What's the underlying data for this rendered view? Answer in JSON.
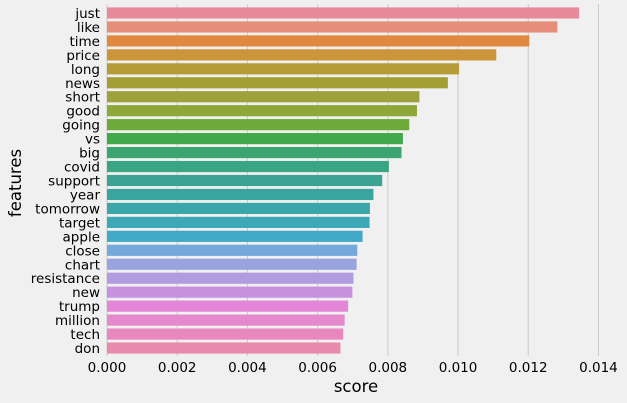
{
  "chart_data": {
    "type": "bar",
    "orientation": "horizontal",
    "title": "",
    "xlabel": "score",
    "ylabel": "features",
    "xlim": [
      0.0,
      0.0145
    ],
    "grid": true,
    "xticks": [
      0.0,
      0.002,
      0.004,
      0.006,
      0.008,
      0.01,
      0.012,
      0.014
    ],
    "xtick_labels": [
      "0.000",
      "0.002",
      "0.004",
      "0.006",
      "0.008",
      "0.010",
      "0.012",
      "0.014"
    ],
    "categories": [
      "just",
      "like",
      "time",
      "price",
      "long",
      "news",
      "short",
      "good",
      "going",
      "vs",
      "big",
      "covid",
      "support",
      "year",
      "tomorrow",
      "target",
      "apple",
      "close",
      "chart",
      "resistance",
      "new",
      "trump",
      "million",
      "tech",
      "don"
    ],
    "values": [
      0.01345,
      0.01283,
      0.01203,
      0.01109,
      0.01003,
      0.00971,
      0.0089,
      0.00883,
      0.00861,
      0.00843,
      0.00839,
      0.00803,
      0.00784,
      0.00759,
      0.00749,
      0.00748,
      0.00728,
      0.00713,
      0.00711,
      0.00702,
      0.00699,
      0.00687,
      0.00677,
      0.00673,
      0.00665
    ],
    "colors": [
      "#e8899a",
      "#e78e7a",
      "#e0893e",
      "#cc9539",
      "#b59c37",
      "#a59d35",
      "#9da139",
      "#8da738",
      "#6daa3a",
      "#41a949",
      "#3ba470",
      "#3aa583",
      "#3aa392",
      "#3aa49e",
      "#3ba6a9",
      "#3da8b6",
      "#40a9c6",
      "#75a9dc",
      "#99a4df",
      "#b19cdf",
      "#c891df",
      "#e386d7",
      "#e688cc",
      "#e888be",
      "#e889ae"
    ]
  }
}
